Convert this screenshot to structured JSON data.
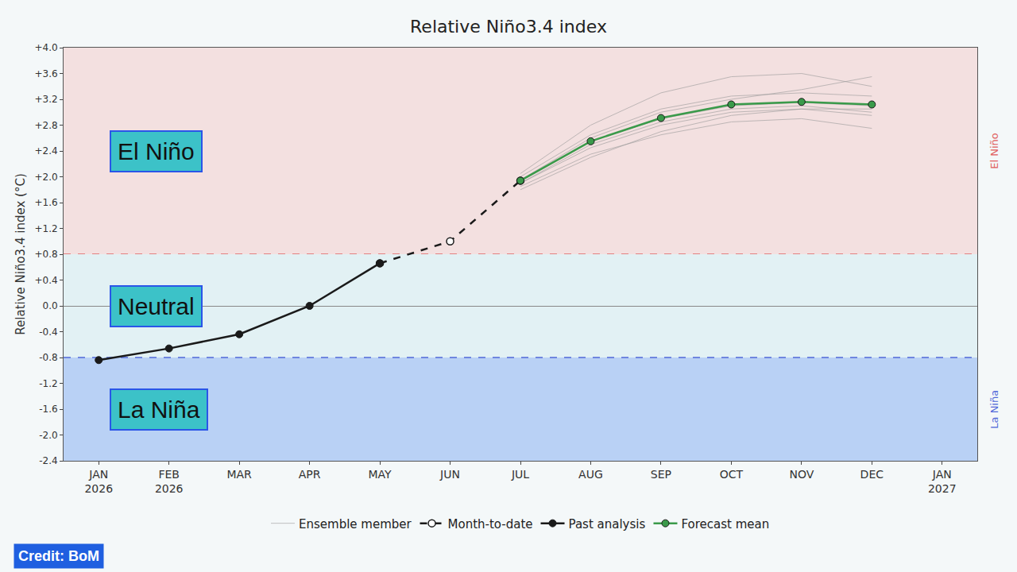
{
  "chart_data": {
    "type": "line",
    "title": "Relative Niño3.4 index",
    "y_label": "Relative Niño3.4 index (°C)",
    "categories": [
      "JAN 2026",
      "FEB 2026",
      "MAR",
      "APR",
      "MAY",
      "JUN",
      "JUL",
      "AUG",
      "SEP",
      "OCT",
      "NOV",
      "DEC",
      "JAN 2027"
    ],
    "ylim": [
      -2.4,
      4.0
    ],
    "yticks": [
      {
        "value": 4.0,
        "label": "+4.0"
      },
      {
        "value": 3.6,
        "label": "+3.6"
      },
      {
        "value": 3.2,
        "label": "+3.2"
      },
      {
        "value": 2.8,
        "label": "+2.8"
      },
      {
        "value": 2.4,
        "label": "+2.4"
      },
      {
        "value": 2.0,
        "label": "+2.0"
      },
      {
        "value": 1.6,
        "label": "+1.6"
      },
      {
        "value": 1.2,
        "label": "+1.2"
      },
      {
        "value": 0.8,
        "label": "+0.8"
      },
      {
        "value": 0.4,
        "label": "+0.4"
      },
      {
        "value": 0,
        "label": "0.0"
      },
      -0.4,
      -0.8,
      -1.2,
      -1.6,
      {
        "value": -2.0,
        "label": "-2.0"
      },
      -2.4
    ],
    "grid": false,
    "legend": "bottom",
    "regions": [
      {
        "label": "El Niño",
        "from": 0.8,
        "to": 4.0,
        "color": "#f3e0e0",
        "edge_color": "#e06060"
      },
      {
        "label": "Neutral",
        "from": -0.8,
        "to": 0.8,
        "color": "#e2f1f4"
      },
      {
        "label": "La Niña",
        "from": -2.4,
        "to": -0.8,
        "color": "#b9d1f5",
        "edge_color": "#5068d8"
      }
    ],
    "series": [
      {
        "name": "Ensemble member",
        "color": "#9a9a9a",
        "marker": "none",
        "line_style": "solid",
        "values": [
          null,
          null,
          null,
          null,
          null,
          null,
          1.85,
          2.35,
          2.65,
          2.85,
          2.9,
          2.75,
          null
        ]
      },
      {
        "name": "Ensemble member",
        "color": "#9a9a9a",
        "marker": "none",
        "line_style": "solid",
        "values": [
          null,
          null,
          null,
          null,
          null,
          null,
          1.9,
          2.45,
          2.8,
          3.0,
          3.05,
          2.95,
          null
        ]
      },
      {
        "name": "Ensemble member",
        "color": "#9a9a9a",
        "marker": "none",
        "line_style": "solid",
        "values": [
          null,
          null,
          null,
          null,
          null,
          null,
          1.95,
          2.55,
          2.9,
          3.1,
          3.15,
          3.1,
          null
        ]
      },
      {
        "name": "Ensemble member",
        "color": "#9a9a9a",
        "marker": "none",
        "line_style": "solid",
        "values": [
          null,
          null,
          null,
          null,
          null,
          null,
          2.0,
          2.65,
          3.05,
          3.25,
          3.3,
          3.25,
          null
        ]
      },
      {
        "name": "Ensemble member",
        "color": "#9a9a9a",
        "marker": "none",
        "line_style": "solid",
        "values": [
          null,
          null,
          null,
          null,
          null,
          null,
          2.05,
          2.8,
          3.3,
          3.55,
          3.6,
          3.4,
          null
        ]
      },
      {
        "name": "Ensemble member",
        "color": "#9a9a9a",
        "marker": "none",
        "line_style": "solid",
        "values": [
          null,
          null,
          null,
          null,
          null,
          null,
          1.8,
          2.3,
          2.7,
          2.95,
          3.05,
          3.05,
          null
        ]
      },
      {
        "name": "Ensemble member",
        "color": "#9a9a9a",
        "marker": "none",
        "line_style": "solid",
        "values": [
          null,
          null,
          null,
          null,
          null,
          null,
          1.95,
          2.6,
          3.0,
          3.2,
          3.35,
          3.55,
          null
        ]
      },
      {
        "name": "Ensemble member",
        "color": "#9a9a9a",
        "marker": "none",
        "line_style": "solid",
        "values": [
          null,
          null,
          null,
          null,
          null,
          null,
          1.9,
          2.5,
          2.85,
          3.05,
          3.1,
          3.0,
          null
        ]
      },
      {
        "name": "Month-to-date",
        "color": "#1a1a1a",
        "marker": "open-circle",
        "line_style": "dashed",
        "values": [
          null,
          null,
          null,
          null,
          0.66,
          1.0,
          1.94,
          null,
          null,
          null,
          null,
          null,
          null
        ]
      },
      {
        "name": "Past analysis",
        "color": "#1a1a1a",
        "marker": "circle",
        "line_style": "solid",
        "values": [
          -0.84,
          -0.66,
          -0.44,
          0.0,
          0.66,
          null,
          null,
          null,
          null,
          null,
          null,
          null,
          null
        ]
      },
      {
        "name": "Forecast mean",
        "color": "#3a9a4a",
        "marker": "circle",
        "line_style": "solid",
        "values": [
          null,
          null,
          null,
          null,
          null,
          null,
          1.94,
          2.55,
          2.91,
          3.12,
          3.16,
          3.12,
          null
        ]
      }
    ],
    "credit": "Credit: BoM"
  }
}
